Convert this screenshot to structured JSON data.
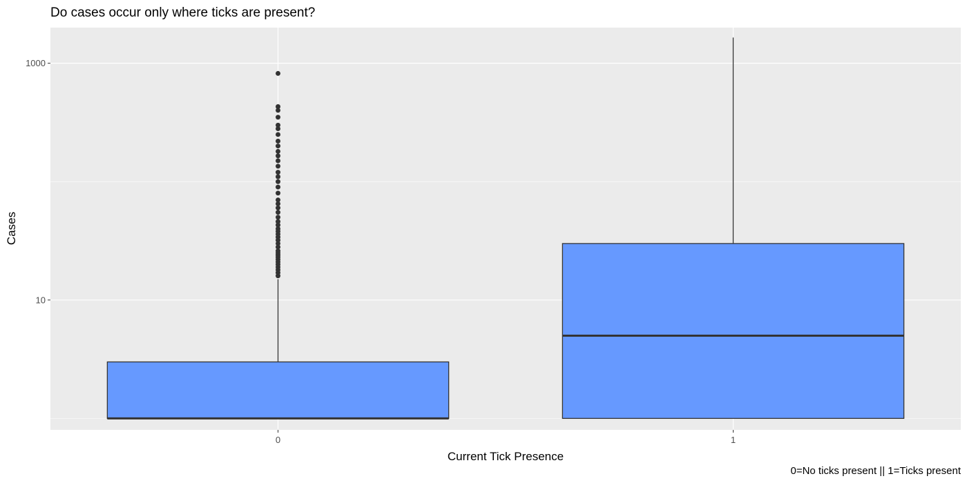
{
  "chart_data": {
    "type": "boxplot",
    "title": "Do cases occur only where ticks are present?",
    "xlabel": "Current Tick Presence",
    "ylabel": "Cases",
    "caption": "0=No ticks present || 1=Ticks present",
    "y_scale": "log10",
    "ylim": [
      0.8,
      2000
    ],
    "y_ticks": [
      {
        "value": 10,
        "label": "10"
      },
      {
        "value": 1000,
        "label": "1000"
      }
    ],
    "y_minor_grid": [
      1,
      100
    ],
    "grid": true,
    "fill_color": "#6699FF",
    "categories": [
      "0",
      "1"
    ],
    "boxes": [
      {
        "category": "0",
        "q1": 1,
        "median": 1,
        "q3": 3,
        "whisker_low": 1,
        "whisker_high": 15,
        "outliers": [
          16,
          17,
          18,
          19,
          20,
          21,
          22,
          23,
          24,
          25,
          26,
          28,
          30,
          32,
          34,
          36,
          38,
          40,
          43,
          46,
          50,
          55,
          60,
          65,
          70,
          80,
          90,
          100,
          110,
          120,
          135,
          150,
          165,
          180,
          200,
          220,
          250,
          280,
          300,
          350,
          400,
          430,
          820
        ]
      },
      {
        "category": "1",
        "q1": 1,
        "median": 5,
        "q3": 30,
        "whisker_low": 1,
        "whisker_high": 1650,
        "outliers": []
      }
    ]
  }
}
